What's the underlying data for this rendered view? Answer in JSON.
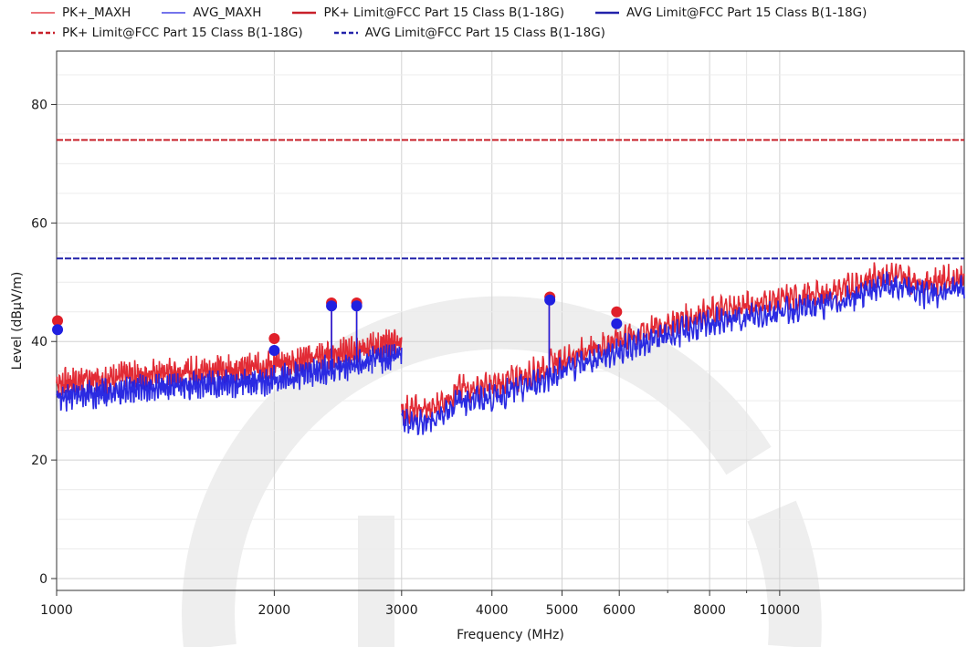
{
  "chart_data": {
    "type": "line",
    "xlabel": "Frequency (MHz)",
    "ylabel": "Level (dBµV/m)",
    "x_scale": "log",
    "xlim": [
      1000,
      18000
    ],
    "ylim": [
      -2,
      89
    ],
    "x_ticks": [
      1000,
      2000,
      3000,
      4000,
      5000,
      6000,
      8000,
      10000
    ],
    "x_tick_labels": [
      "1000",
      "2000",
      "3000",
      "4000",
      "5000",
      "6000",
      "8000",
      "10000"
    ],
    "y_ticks": [
      0,
      20,
      40,
      60,
      80
    ],
    "y_tick_labels": [
      "0",
      "20",
      "40",
      "60",
      "80"
    ],
    "grid": true,
    "legend_position": "top",
    "legend": [
      {
        "label": "PK+_MAXH",
        "color": "#e0202a",
        "style": "thin"
      },
      {
        "label": "AVG_MAXH",
        "color": "#2020e0",
        "style": "thin"
      },
      {
        "label": "PK+ Limit@FCC Part 15 Class B(1-18G)",
        "color": "#c8202a",
        "style": "solid"
      },
      {
        "label": "AVG Limit@FCC Part 15 Class B(1-18G)",
        "color": "#2222aa",
        "style": "solid"
      },
      {
        "label": "PK+ Limit@FCC Part 15 Class B(1-18G)",
        "color": "#c8202a",
        "style": "dashed"
      },
      {
        "label": "AVG Limit@FCC Part 15 Class B(1-18G)",
        "color": "#2222aa",
        "style": "dashed"
      }
    ],
    "series": [
      {
        "name": "PK+_MAXH",
        "color": "#e0202a",
        "segments": [
          {
            "x": [
              1000,
              1200,
              1500,
              1800,
              2000,
              2300,
              2600,
              3000
            ],
            "y": [
              33,
              34,
              35,
              35.5,
              36,
              37.5,
              38.5,
              40
            ]
          },
          {
            "x": [
              3000,
              3300,
              3600,
              4000,
              4500,
              5000,
              6000,
              7000,
              8000,
              10000,
              12000,
              14000,
              16000,
              18000
            ],
            "y": [
              28.5,
              28.5,
              32,
              32.5,
              34.5,
              37,
              40.5,
              43,
              45,
              47,
              48.5,
              51.5,
              50,
              51
            ]
          }
        ],
        "spikes": [
          {
            "x": 2400,
            "y": 46.5
          },
          {
            "x": 2600,
            "y": 46.5
          },
          {
            "x": 4800,
            "y": 47.5
          }
        ]
      },
      {
        "name": "AVG_MAXH",
        "color": "#2020e0",
        "segments": [
          {
            "x": [
              1000,
              1200,
              1500,
              1800,
              2000,
              2300,
              2600,
              3000
            ],
            "y": [
              30.5,
              31.5,
              32.5,
              33,
              33.5,
              35,
              36,
              38
            ]
          },
          {
            "x": [
              3000,
              3300,
              3600,
              4000,
              4500,
              5000,
              6000,
              7000,
              8000,
              10000,
              12000,
              14000,
              16000,
              18000
            ],
            "y": [
              26.5,
              26.5,
              30,
              30.5,
              32.5,
              35,
              38.5,
              41,
              43,
              45,
              46.5,
              49.5,
              48,
              49
            ]
          }
        ],
        "spikes": [
          {
            "x": 2400,
            "y": 45.5
          },
          {
            "x": 2600,
            "y": 45.5
          },
          {
            "x": 4800,
            "y": 47
          }
        ]
      },
      {
        "name": "PK+ Limit@FCC Part 15 Class B(1-18G)",
        "color": "#c8202a",
        "style": "dashed",
        "x": [
          1000,
          18000
        ],
        "y": [
          74,
          74
        ]
      },
      {
        "name": "AVG Limit@FCC Part 15 Class B(1-18G)",
        "color": "#2222aa",
        "style": "dashed",
        "x": [
          1000,
          18000
        ],
        "y": [
          54,
          54
        ]
      }
    ],
    "markers": [
      {
        "series": "PK+_MAXH",
        "color": "#e0202a",
        "x": 1003,
        "y": 43.5
      },
      {
        "series": "AVG_MAXH",
        "color": "#2020e0",
        "x": 1003,
        "y": 42
      },
      {
        "series": "PK+_MAXH",
        "color": "#e0202a",
        "x": 2000,
        "y": 40.5
      },
      {
        "series": "AVG_MAXH",
        "color": "#2020e0",
        "x": 2000,
        "y": 38.5
      },
      {
        "series": "PK+_MAXH",
        "color": "#e0202a",
        "x": 2400,
        "y": 46.5
      },
      {
        "series": "AVG_MAXH",
        "color": "#2020e0",
        "x": 2400,
        "y": 46
      },
      {
        "series": "PK+_MAXH",
        "color": "#e0202a",
        "x": 2600,
        "y": 46.5
      },
      {
        "series": "AVG_MAXH",
        "color": "#2020e0",
        "x": 2600,
        "y": 46
      },
      {
        "series": "PK+_MAXH",
        "color": "#e0202a",
        "x": 4810,
        "y": 47.5
      },
      {
        "series": "AVG_MAXH",
        "color": "#2020e0",
        "x": 4810,
        "y": 47
      },
      {
        "series": "PK+_MAXH",
        "color": "#e0202a",
        "x": 5950,
        "y": 45
      },
      {
        "series": "AVG_MAXH",
        "color": "#2020e0",
        "x": 5950,
        "y": 43
      }
    ]
  }
}
